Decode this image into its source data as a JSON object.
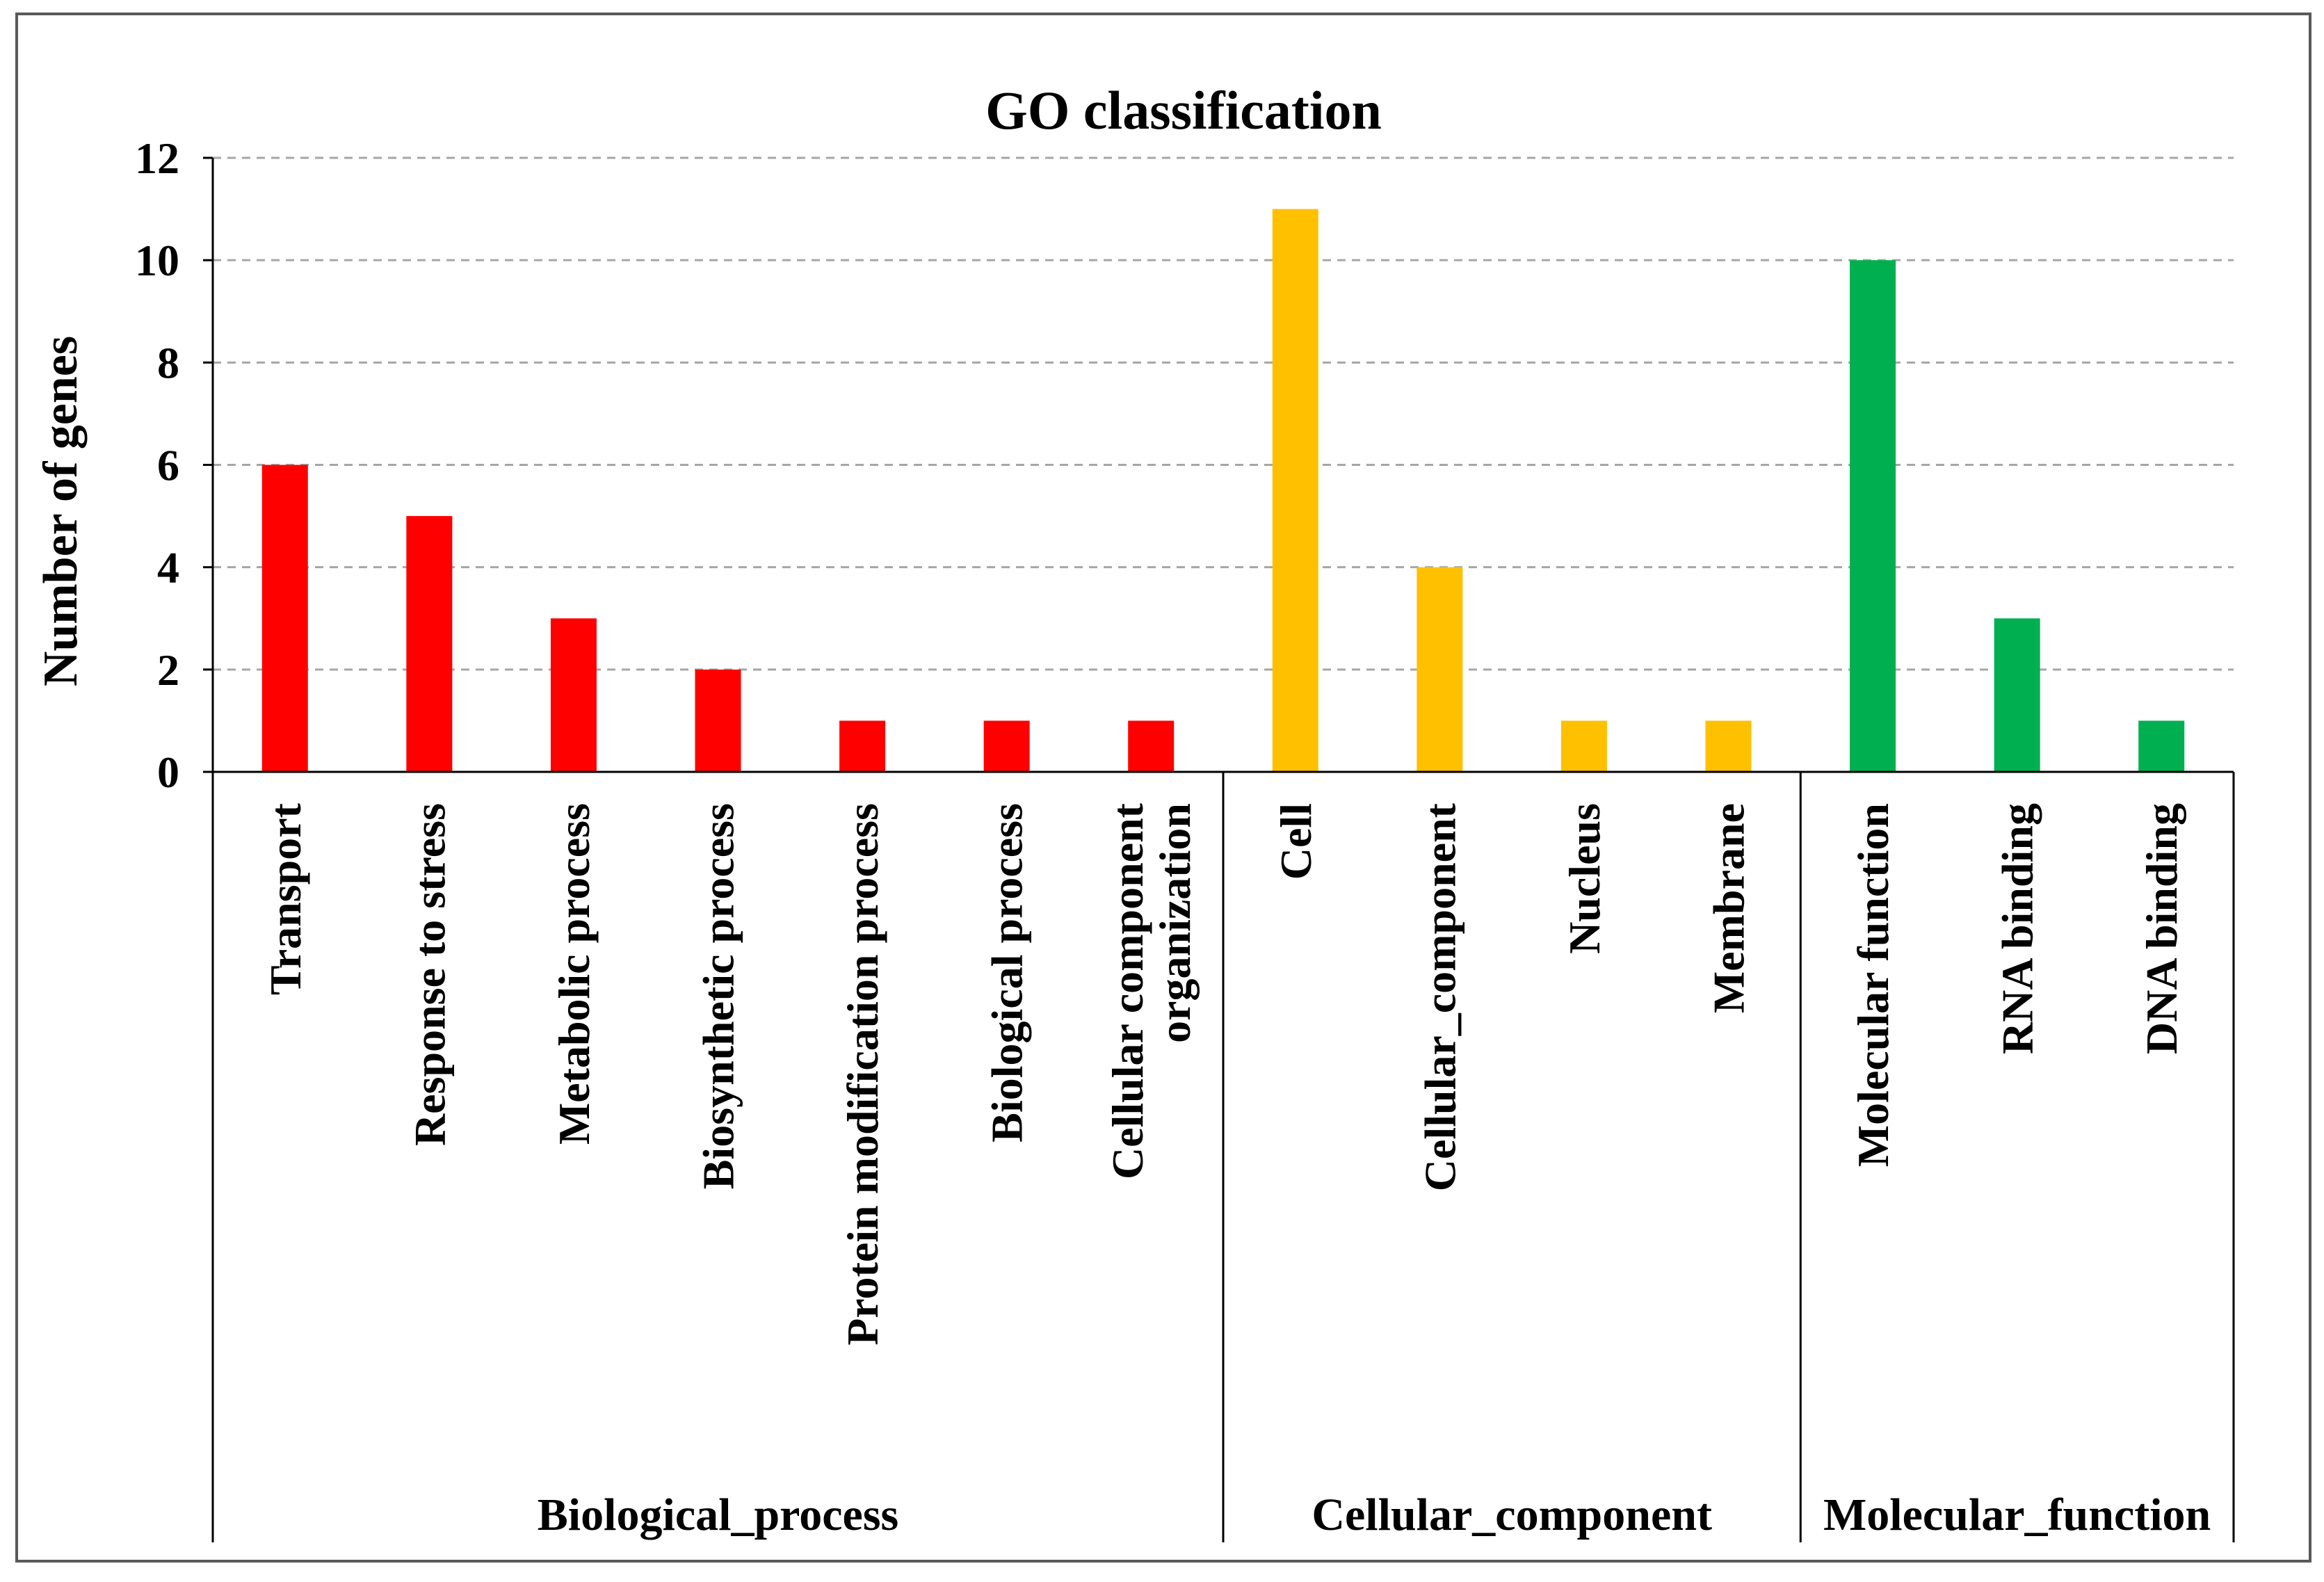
{
  "chart_data": {
    "type": "bar",
    "title": "GO classification",
    "xlabel": "",
    "ylabel": "Number of genes",
    "ylim": [
      0,
      12
    ],
    "yticks": [
      0,
      2,
      4,
      6,
      8,
      10,
      12
    ],
    "grid": "horizontal dashed",
    "categories": [
      {
        "label": [
          "Transport"
        ],
        "value": 6,
        "group": 0
      },
      {
        "label": [
          "Response to stress"
        ],
        "value": 5,
        "group": 0
      },
      {
        "label": [
          "Metabolic process"
        ],
        "value": 3,
        "group": 0
      },
      {
        "label": [
          "Biosynthetic process"
        ],
        "value": 2,
        "group": 0
      },
      {
        "label": [
          "Protein modification process"
        ],
        "value": 1,
        "group": 0
      },
      {
        "label": [
          "Biological process"
        ],
        "value": 1,
        "group": 0
      },
      {
        "label": [
          "Cellular component",
          "organization"
        ],
        "value": 1,
        "group": 0
      },
      {
        "label": [
          "Cell"
        ],
        "value": 11,
        "group": 1
      },
      {
        "label": [
          "Cellular_component"
        ],
        "value": 4,
        "group": 1
      },
      {
        "label": [
          "Nucleus"
        ],
        "value": 1,
        "group": 1
      },
      {
        "label": [
          "Membrane"
        ],
        "value": 1,
        "group": 1
      },
      {
        "label": [
          "Molecular function"
        ],
        "value": 10,
        "group": 2
      },
      {
        "label": [
          "RNA binding"
        ],
        "value": 3,
        "group": 2
      },
      {
        "label": [
          "DNA binding"
        ],
        "value": 1,
        "group": 2
      }
    ],
    "groups": [
      {
        "name": "Biological_process",
        "color": "#ff0000"
      },
      {
        "name": "Cellular_component",
        "color": "#ffc000"
      },
      {
        "name": "Molecular_function",
        "color": "#00b050"
      }
    ]
  }
}
